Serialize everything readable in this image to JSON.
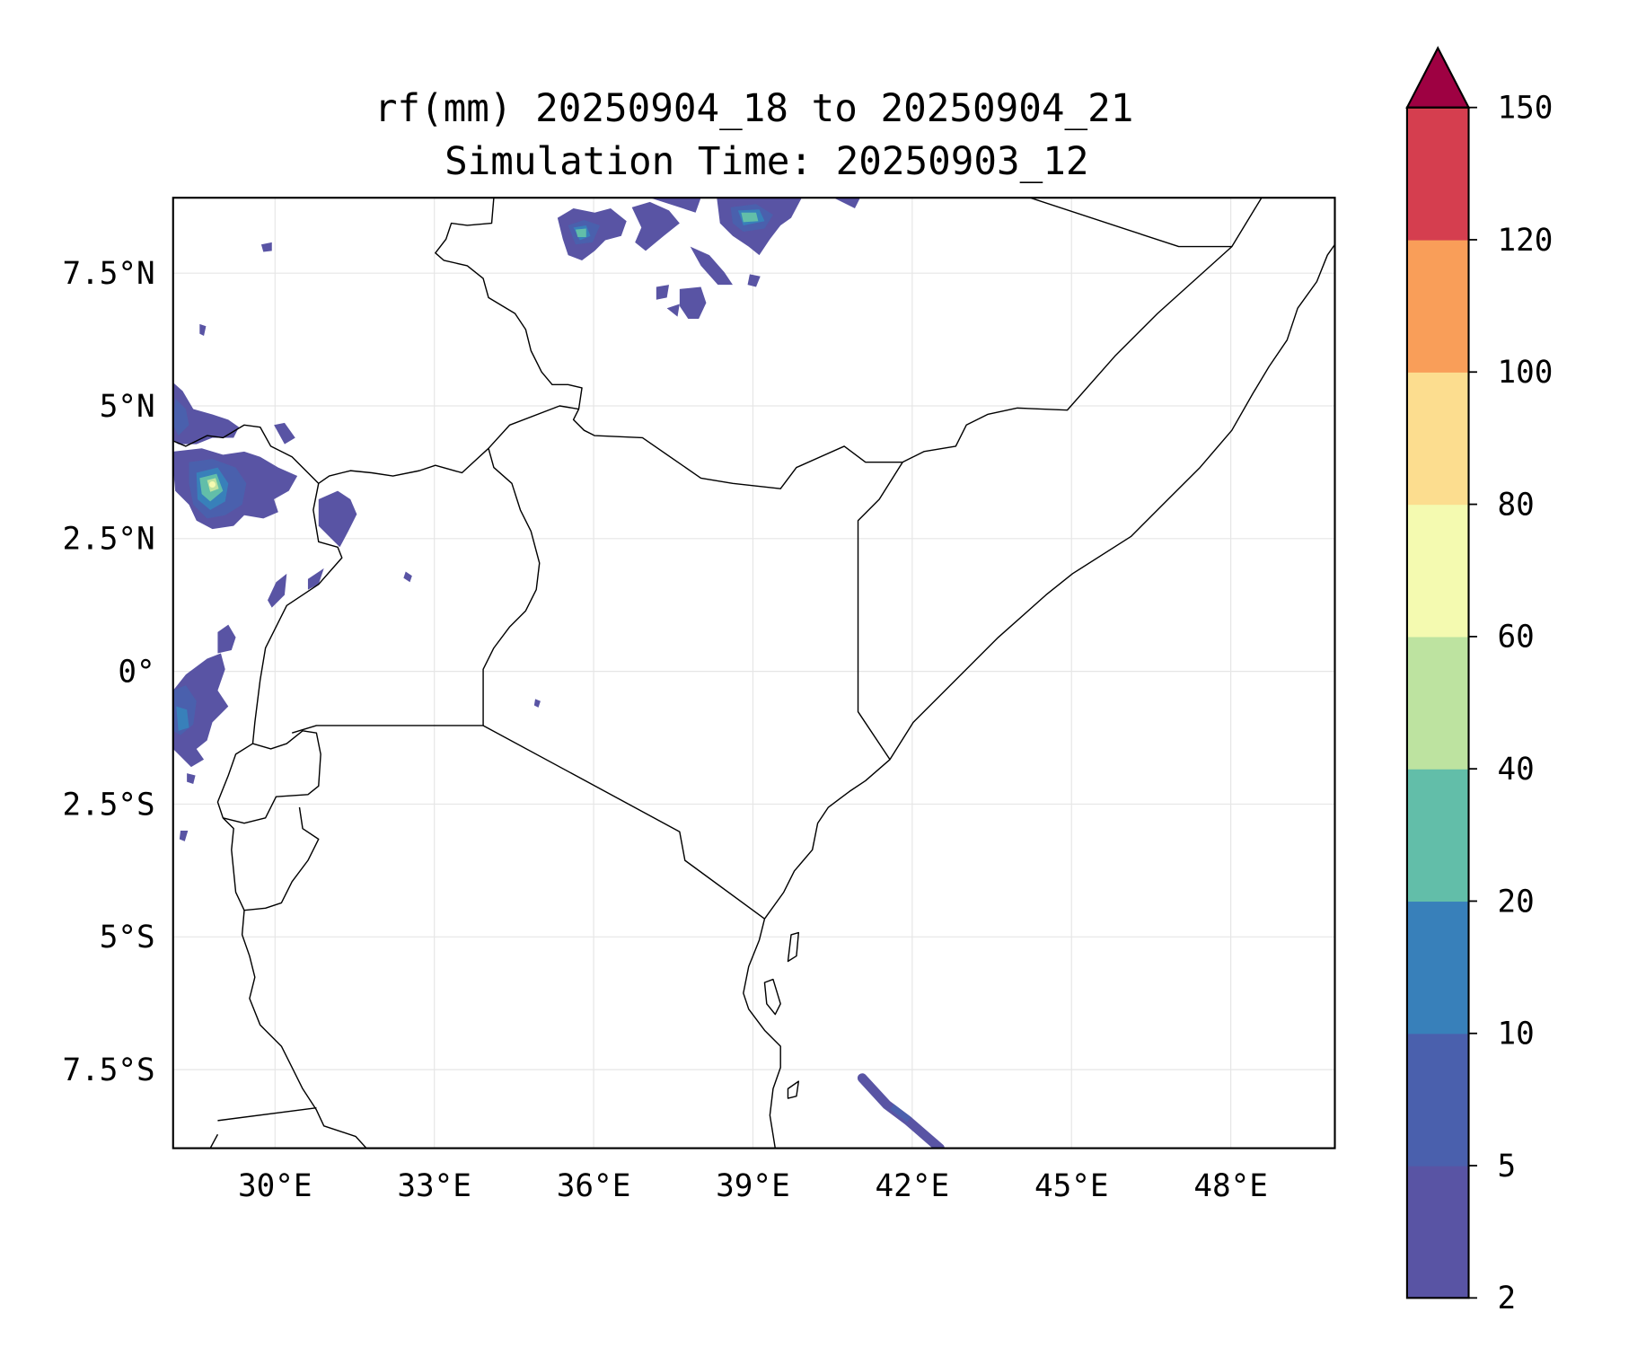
{
  "title": {
    "line1": "rf(mm) 20250904_18 to 20250904_21",
    "line2": "Simulation Time: 20250903_12"
  },
  "map": {
    "extent_lon": [
      28.08,
      49.96
    ],
    "extent_lat": [
      -8.98,
      8.92
    ],
    "lon_ticks": [
      30,
      33,
      36,
      39,
      42,
      45,
      48
    ],
    "lon_labels": [
      "30°E",
      "33°E",
      "36°E",
      "39°E",
      "42°E",
      "45°E",
      "48°E"
    ],
    "lat_ticks": [
      7.5,
      5,
      2.5,
      0,
      -2.5,
      -5,
      -7.5
    ],
    "lat_labels": [
      "7.5°N",
      "5°N",
      "2.5°N",
      "0°",
      "2.5°S",
      "5°S",
      "7.5°S"
    ]
  },
  "colorbar": {
    "levels": [
      "2",
      "5",
      "10",
      "20",
      "40",
      "60",
      "80",
      "100",
      "120",
      "150"
    ],
    "colors": [
      "#5954a4",
      "#4a60ad",
      "#3880ba",
      "#62bea9",
      "#bde3a0",
      "#f4fab0",
      "#fcdd8f",
      "#f99e59",
      "#d53e4f"
    ],
    "extend_color": "#9e0142"
  }
}
